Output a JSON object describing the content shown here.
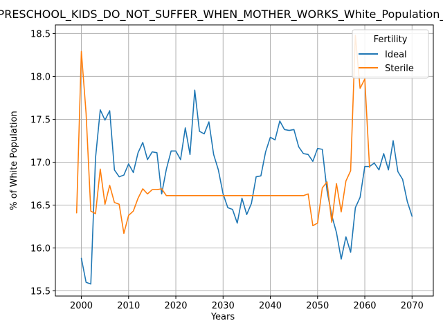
{
  "chart_data": {
    "type": "line",
    "title": "PRESCHOOL_KIDS_DO_NOT_SUFFER_WHEN_MOTHER_WORKS_White_Population_",
    "xlabel": "Years",
    "ylabel": "% of White Population",
    "xlim": [
      1994.5,
      2074.5
    ],
    "ylim": [
      15.44,
      18.6
    ],
    "x_ticks": [
      2000,
      2010,
      2020,
      2030,
      2040,
      2050,
      2060,
      2070
    ],
    "y_ticks": [
      15.5,
      16.0,
      16.5,
      17.0,
      17.5,
      18.0,
      18.5
    ],
    "grid": true,
    "legend": {
      "title": "Fertility",
      "placement": "top-right"
    },
    "series": [
      {
        "name": "Ideal",
        "color": "#1f77b4",
        "x": [
          2000,
          2001,
          2002,
          2003,
          2004,
          2005,
          2006,
          2007,
          2008,
          2009,
          2010,
          2011,
          2012,
          2013,
          2014,
          2015,
          2016,
          2017,
          2018,
          2019,
          2020,
          2021,
          2022,
          2023,
          2024,
          2025,
          2026,
          2027,
          2028,
          2029,
          2030,
          2031,
          2032,
          2033,
          2034,
          2035,
          2036,
          2037,
          2038,
          2039,
          2040,
          2041,
          2042,
          2043,
          2044,
          2045,
          2046,
          2047,
          2048,
          2049,
          2050,
          2051,
          2052,
          2053,
          2054,
          2055,
          2056,
          2057,
          2058,
          2059,
          2060,
          2061,
          2062,
          2063,
          2064,
          2065,
          2066,
          2067,
          2068,
          2069,
          2070
        ],
        "values": [
          15.88,
          15.6,
          15.58,
          17.05,
          17.61,
          17.49,
          17.6,
          16.91,
          16.83,
          16.85,
          16.98,
          16.88,
          17.11,
          17.23,
          17.03,
          17.12,
          17.11,
          16.63,
          16.92,
          17.13,
          17.13,
          17.03,
          17.4,
          17.09,
          17.84,
          17.36,
          17.33,
          17.47,
          17.09,
          16.91,
          16.63,
          16.47,
          16.45,
          16.29,
          16.58,
          16.39,
          16.52,
          16.83,
          16.84,
          17.12,
          17.29,
          17.26,
          17.48,
          17.38,
          17.37,
          17.38,
          17.18,
          17.1,
          17.09,
          17.01,
          17.16,
          17.15,
          16.67,
          16.38,
          16.18,
          15.87,
          16.13,
          15.95,
          16.47,
          16.59,
          16.95,
          16.95,
          16.99,
          16.91,
          17.1,
          16.91,
          17.25,
          16.89,
          16.8,
          16.54,
          16.37
        ]
      },
      {
        "name": "Sterile",
        "color": "#ff7f0e",
        "x": [
          1999,
          2000,
          2001,
          2002,
          2003,
          2004,
          2005,
          2006,
          2007,
          2008,
          2009,
          2010,
          2011,
          2012,
          2013,
          2014,
          2015,
          2016,
          2017,
          2018,
          2019,
          2020,
          2021,
          2022,
          2023,
          2024,
          2025,
          2026,
          2027,
          2028,
          2029,
          2030,
          2031,
          2032,
          2033,
          2034,
          2035,
          2036,
          2037,
          2038,
          2039,
          2040,
          2041,
          2042,
          2043,
          2044,
          2045,
          2046,
          2047,
          2048,
          2049,
          2050,
          2051,
          2052,
          2053,
          2054,
          2055,
          2056,
          2057,
          2058,
          2059,
          2060,
          2061
        ],
        "values": [
          16.41,
          18.29,
          17.57,
          16.43,
          16.4,
          16.92,
          16.51,
          16.73,
          16.53,
          16.51,
          16.17,
          16.38,
          16.43,
          16.58,
          16.69,
          16.63,
          16.68,
          16.68,
          16.69,
          16.61,
          16.61,
          16.61,
          16.61,
          16.61,
          16.61,
          16.61,
          16.61,
          16.61,
          16.61,
          16.61,
          16.61,
          16.61,
          16.61,
          16.61,
          16.61,
          16.61,
          16.61,
          16.61,
          16.61,
          16.61,
          16.61,
          16.61,
          16.61,
          16.61,
          16.61,
          16.61,
          16.61,
          16.61,
          16.61,
          16.63,
          16.26,
          16.29,
          16.7,
          16.77,
          16.3,
          16.75,
          16.42,
          16.78,
          16.9,
          18.48,
          17.86,
          17.97,
          16.94
        ]
      }
    ]
  }
}
